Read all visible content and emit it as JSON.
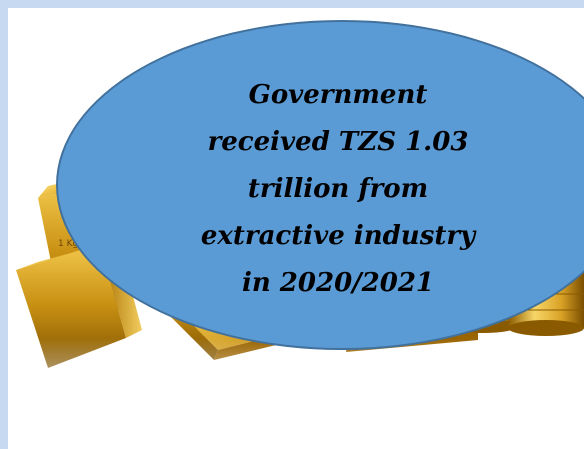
{
  "image": {
    "subject": "gold bars and coins",
    "palette": {
      "gold_light": "#fff3a8",
      "gold_mid": "#e8b830",
      "gold_dark": "#8a5a00",
      "frame_border": "#c6d9f1",
      "bubble_fill": "#5b9bd5",
      "bubble_outline": "#41719c"
    }
  },
  "callout": {
    "lines": [
      "Government",
      "received TZS 1.03",
      "trillion from",
      "extractive industry",
      "in 2020/2021"
    ]
  }
}
